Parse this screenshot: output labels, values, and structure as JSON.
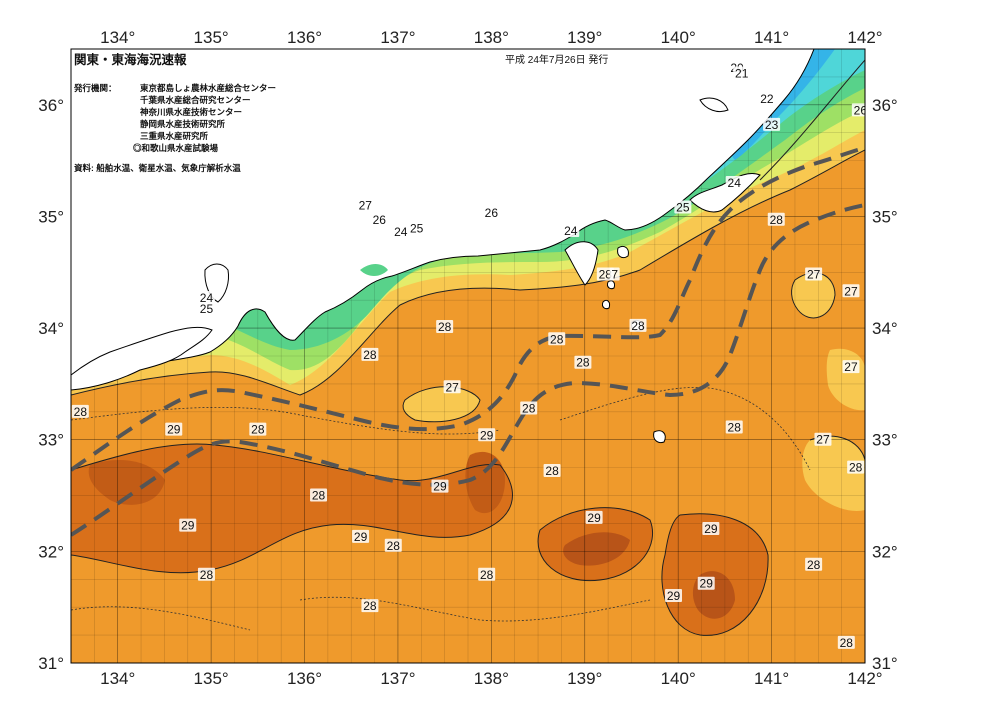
{
  "title": "関東・東海海況速報",
  "date_line": "平成 24年7月26日 発行",
  "issuers_label": "発行機関：",
  "issuers": [
    "東京都島しょ農林水産総合センター",
    "千葉県水産総合研究センター",
    "神奈川県水産技術センター",
    "静岡県水産技術研究所",
    "三重県水産研究所",
    "◎和歌山県水産試験場"
  ],
  "source_line": "資料: 船舶水温、衛星水温、気象庁解析水温",
  "longitude_labels": [
    "134°",
    "135°",
    "136°",
    "137°",
    "138°",
    "139°",
    "140°",
    "141°",
    "142°"
  ],
  "latitude_labels": [
    "31°",
    "32°",
    "33°",
    "34°",
    "35°",
    "36°"
  ],
  "temperature_labels": [
    {
      "text": "20",
      "lon": 140.63,
      "lat": 36.33
    },
    {
      "text": "21",
      "lon": 140.68,
      "lat": 36.28
    },
    {
      "text": "22",
      "lon": 140.95,
      "lat": 36.05
    },
    {
      "text": "23",
      "lon": 141.0,
      "lat": 35.82
    },
    {
      "text": "26",
      "lon": 141.95,
      "lat": 35.95
    },
    {
      "text": "24",
      "lon": 140.6,
      "lat": 35.3
    },
    {
      "text": "25",
      "lon": 140.05,
      "lat": 35.08
    },
    {
      "text": "26",
      "lon": 138.0,
      "lat": 35.03
    },
    {
      "text": "27",
      "lon": 136.65,
      "lat": 35.1
    },
    {
      "text": "26",
      "lon": 136.8,
      "lat": 34.97
    },
    {
      "text": "24",
      "lon": 137.03,
      "lat": 34.86
    },
    {
      "text": "25",
      "lon": 137.2,
      "lat": 34.89
    },
    {
      "text": "24",
      "lon": 138.85,
      "lat": 34.87
    },
    {
      "text": "28",
      "lon": 139.22,
      "lat": 34.48
    },
    {
      "text": "7",
      "lon": 139.32,
      "lat": 34.48
    },
    {
      "text": "24",
      "lon": 134.95,
      "lat": 34.27
    },
    {
      "text": "25",
      "lon": 134.95,
      "lat": 34.17
    },
    {
      "text": "28",
      "lon": 141.05,
      "lat": 34.97
    },
    {
      "text": "27",
      "lon": 141.45,
      "lat": 34.48
    },
    {
      "text": "27",
      "lon": 141.85,
      "lat": 34.33
    },
    {
      "text": "27",
      "lon": 141.85,
      "lat": 33.65
    },
    {
      "text": "27",
      "lon": 141.55,
      "lat": 33.0
    },
    {
      "text": "28",
      "lon": 141.9,
      "lat": 32.75
    },
    {
      "text": "28",
      "lon": 140.6,
      "lat": 33.11
    },
    {
      "text": "28",
      "lon": 137.5,
      "lat": 34.01
    },
    {
      "text": "28",
      "lon": 139.57,
      "lat": 34.02
    },
    {
      "text": "28",
      "lon": 138.7,
      "lat": 33.9
    },
    {
      "text": "28",
      "lon": 138.98,
      "lat": 33.69
    },
    {
      "text": "28",
      "lon": 136.7,
      "lat": 33.76
    },
    {
      "text": "27",
      "lon": 137.58,
      "lat": 33.47
    },
    {
      "text": "28",
      "lon": 138.4,
      "lat": 33.28
    },
    {
      "text": "29",
      "lon": 137.95,
      "lat": 33.04
    },
    {
      "text": "28",
      "lon": 133.6,
      "lat": 33.25
    },
    {
      "text": "29",
      "lon": 134.6,
      "lat": 33.09
    },
    {
      "text": "28",
      "lon": 135.5,
      "lat": 33.09
    },
    {
      "text": "28",
      "lon": 138.65,
      "lat": 32.72
    },
    {
      "text": "29",
      "lon": 137.45,
      "lat": 32.58
    },
    {
      "text": "28",
      "lon": 136.15,
      "lat": 32.5
    },
    {
      "text": "29",
      "lon": 139.1,
      "lat": 32.3
    },
    {
      "text": "29",
      "lon": 140.35,
      "lat": 32.2
    },
    {
      "text": "29",
      "lon": 134.75,
      "lat": 32.23
    },
    {
      "text": "29",
      "lon": 136.6,
      "lat": 32.13
    },
    {
      "text": "28",
      "lon": 136.95,
      "lat": 32.05
    },
    {
      "text": "28",
      "lon": 141.45,
      "lat": 31.88
    },
    {
      "text": "28",
      "lon": 134.95,
      "lat": 31.79
    },
    {
      "text": "28",
      "lon": 137.95,
      "lat": 31.79
    },
    {
      "text": "29",
      "lon": 140.3,
      "lat": 31.71
    },
    {
      "text": "29",
      "lon": 139.95,
      "lat": 31.6
    },
    {
      "text": "28",
      "lon": 136.7,
      "lat": 31.51
    },
    {
      "text": "28",
      "lon": 141.8,
      "lat": 31.18
    }
  ],
  "colors": {
    "t20": "#1e63c8",
    "t21": "#2d8ae0",
    "t22": "#34b4e8",
    "t23": "#4fd6d8",
    "t24": "#58d28a",
    "t25": "#9ee065",
    "t26": "#e4ec6a",
    "t27": "#f8c850",
    "t28": "#ef9a2c",
    "t29": "#d9701a",
    "t30": "#b85418",
    "land": "#ffffff",
    "kuroshio": "#555555"
  }
}
